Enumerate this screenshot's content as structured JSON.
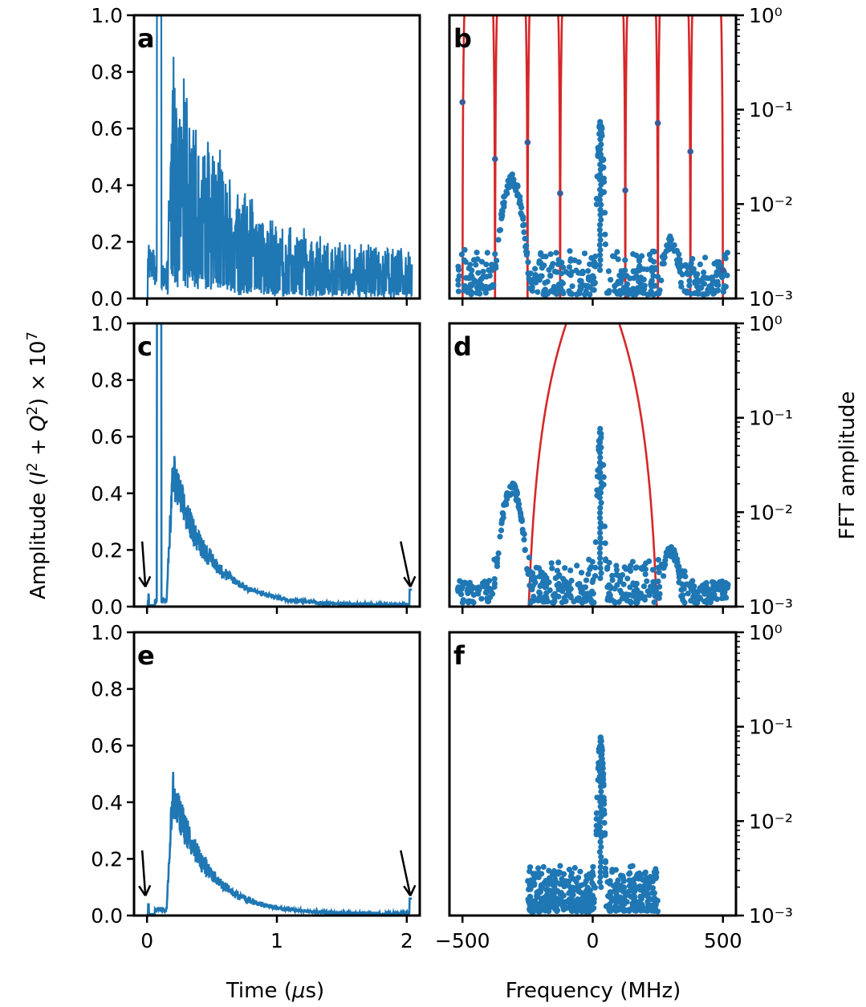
{
  "chart_data": {
    "type": "multi-panel",
    "ylabel_left": "Amplitude (I² + Q²) × 10⁷",
    "ylabel_right": "FFT amplitude",
    "xlabel_time": "Time (μs)",
    "xlabel_freq": "Frequency (MHz)",
    "time_axis": {
      "xlim": [
        -0.1,
        2.1
      ],
      "ticks": [
        0,
        1,
        2
      ],
      "tick_labels": [
        "0",
        "1",
        "2"
      ]
    },
    "amp_axis": {
      "ylim": [
        0,
        1.0
      ],
      "ticks": [
        0.0,
        0.2,
        0.4,
        0.6,
        0.8,
        1.0
      ],
      "tick_labels": [
        "0.0",
        "0.2",
        "0.4",
        "0.6",
        "0.8",
        "1.0"
      ]
    },
    "freq_axis": {
      "xlim": [
        -550,
        550
      ],
      "ticks": [
        -500,
        0,
        500
      ],
      "tick_labels": [
        "−500",
        "0",
        "500"
      ]
    },
    "fft_axis": {
      "scale": "log",
      "ylim": [
        0.001,
        1
      ],
      "tick_labels": [
        "10⁰",
        "10⁻¹",
        "10⁻²",
        "10⁻³"
      ]
    },
    "series_color": "#1f77b4",
    "filter_color": "#d62728",
    "panels": [
      {
        "letter": "a",
        "kind": "time",
        "peak_pulse_time": 0.09,
        "decay": {
          "t_start": 0.15,
          "peak": 0.8,
          "tau": 0.45,
          "floor": 0.12
        },
        "arrows": []
      },
      {
        "letter": "b",
        "kind": "freq",
        "filter_notches_mhz": [
          -500,
          -375,
          -250,
          -125,
          125,
          250,
          375,
          500
        ],
        "notch_points": [
          {
            "f": -500,
            "a": 0.12
          },
          {
            "f": -375,
            "a": 0.03
          },
          {
            "f": -250,
            "a": 0.045
          },
          {
            "f": -125,
            "a": 0.013
          },
          {
            "f": 125,
            "a": 0.014
          },
          {
            "f": 250,
            "a": 0.072
          },
          {
            "f": 375,
            "a": 0.036
          },
          {
            "f": 500,
            "a": 0.002
          }
        ],
        "peaks": [
          {
            "f": -310,
            "a": 0.018,
            "w": 60
          },
          {
            "f": 30,
            "a": 0.07,
            "w": 12
          },
          {
            "f": 300,
            "a": 0.004,
            "w": 55
          }
        ]
      },
      {
        "letter": "c",
        "kind": "time",
        "peak_pulse_time": 0.09,
        "decay": {
          "t_start": 0.15,
          "peak": 0.48,
          "tau": 0.28,
          "floor": 0.0
        },
        "arrows": [
          "t0",
          "t2"
        ]
      },
      {
        "letter": "d",
        "kind": "freq",
        "filter_band_mhz": [
          -260,
          260
        ],
        "peaks": [
          {
            "f": -310,
            "a": 0.018,
            "w": 60
          },
          {
            "f": 30,
            "a": 0.07,
            "w": 12
          },
          {
            "f": 300,
            "a": 0.004,
            "w": 55
          }
        ]
      },
      {
        "letter": "e",
        "kind": "time",
        "peak_pulse_time": null,
        "decay": {
          "t_start": 0.15,
          "peak": 0.44,
          "tau": 0.27,
          "floor": 0.0
        },
        "arrows": [
          "t0",
          "t2"
        ]
      },
      {
        "letter": "f",
        "kind": "freq",
        "band_limit_mhz": [
          -250,
          250
        ],
        "peaks": [
          {
            "f": 30,
            "a": 0.07,
            "w": 12
          }
        ]
      }
    ]
  }
}
